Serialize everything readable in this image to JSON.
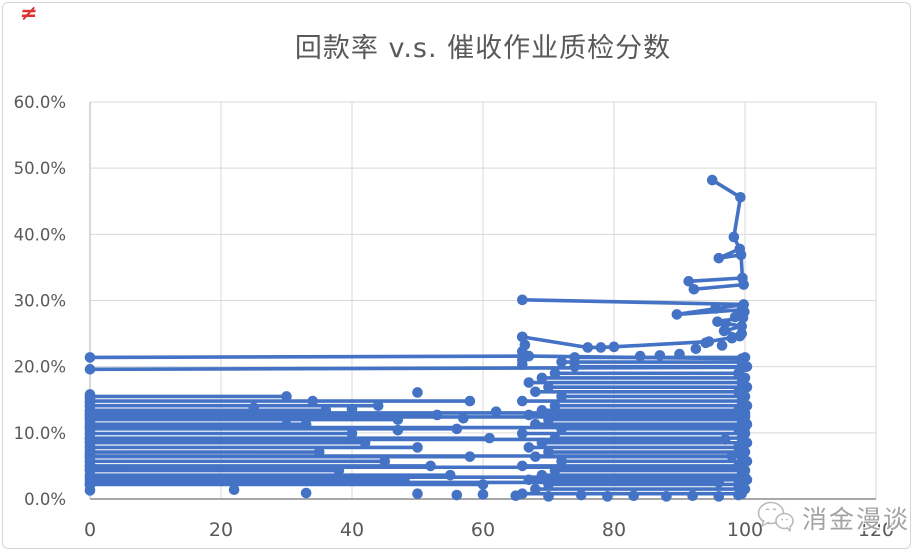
{
  "decorations": {
    "red_mark": "≠"
  },
  "watermark": {
    "text": "消金漫谈",
    "icon": "wechat-logo"
  },
  "chart_data": {
    "type": "scatter-line",
    "title": "回款率 v.s. 催收作业质检分数",
    "xlabel": "",
    "ylabel": "",
    "xlim": [
      0,
      120
    ],
    "ylim_pct": [
      0,
      60
    ],
    "grid": true,
    "legend": "none",
    "series_color": "#4472C4",
    "grid_color": "#d9d9d9",
    "axis_color": "#8c8c8c",
    "tick_text_color": "#595959",
    "x_ticks": [
      {
        "v": 0,
        "label": "0"
      },
      {
        "v": 20,
        "label": "20"
      },
      {
        "v": 40,
        "label": "40"
      },
      {
        "v": 60,
        "label": "60"
      },
      {
        "v": 80,
        "label": "80"
      },
      {
        "v": 100,
        "label": "100"
      },
      {
        "v": 120,
        "label": "120"
      }
    ],
    "y_ticks": [
      {
        "v": 0,
        "label": "0.0%"
      },
      {
        "v": 10,
        "label": "10.0%"
      },
      {
        "v": 20,
        "label": "20.0%"
      },
      {
        "v": 30,
        "label": "30.0%"
      },
      {
        "v": 40,
        "label": "40.0%"
      },
      {
        "v": 50,
        "label": "50.0%"
      },
      {
        "v": 60,
        "label": "60.0%"
      }
    ],
    "series": [
      {
        "pts": [
          [
            0,
            2.2
          ],
          [
            60,
            2.2
          ]
        ]
      },
      {
        "pts": [
          [
            0,
            2.9
          ],
          [
            48,
            2.9
          ]
        ]
      },
      {
        "pts": [
          [
            0,
            3.6
          ],
          [
            55,
            3.6
          ]
        ]
      },
      {
        "pts": [
          [
            0,
            4.3
          ],
          [
            38,
            4.3
          ]
        ]
      },
      {
        "pts": [
          [
            0,
            5.0
          ],
          [
            52,
            5.0
          ]
        ]
      },
      {
        "pts": [
          [
            0,
            5.7
          ],
          [
            45,
            5.7
          ]
        ]
      },
      {
        "pts": [
          [
            0,
            6.4
          ],
          [
            58,
            6.4
          ]
        ]
      },
      {
        "pts": [
          [
            0,
            7.1
          ],
          [
            35,
            7.1
          ]
        ]
      },
      {
        "pts": [
          [
            0,
            7.8
          ],
          [
            50,
            7.8
          ]
        ]
      },
      {
        "pts": [
          [
            0,
            8.5
          ],
          [
            42,
            8.5
          ]
        ]
      },
      {
        "pts": [
          [
            0,
            9.2
          ],
          [
            61,
            9.2
          ]
        ]
      },
      {
        "pts": [
          [
            0,
            9.9
          ],
          [
            40,
            9.9
          ]
        ]
      },
      {
        "pts": [
          [
            0,
            10.6
          ],
          [
            56,
            10.6
          ]
        ]
      },
      {
        "pts": [
          [
            0,
            11.3
          ],
          [
            33,
            11.3
          ]
        ]
      },
      {
        "pts": [
          [
            0,
            12.0
          ],
          [
            47,
            12.0
          ]
        ]
      },
      {
        "pts": [
          [
            0,
            12.7
          ],
          [
            53,
            12.7
          ]
        ]
      },
      {
        "pts": [
          [
            0,
            13.4
          ],
          [
            36,
            13.4
          ]
        ]
      },
      {
        "pts": [
          [
            0,
            14.1
          ],
          [
            44,
            14.1
          ]
        ]
      },
      {
        "pts": [
          [
            0,
            14.8
          ],
          [
            58,
            14.8
          ]
        ]
      },
      {
        "pts": [
          [
            0,
            15.5
          ],
          [
            30,
            15.5
          ]
        ]
      },
      {
        "pts": [
          [
            0,
            2.5
          ],
          [
            96,
            2.5
          ]
        ]
      },
      {
        "pts": [
          [
            0,
            3.3
          ],
          [
            100,
            3.3
          ]
        ]
      },
      {
        "pts": [
          [
            0,
            4.8
          ],
          [
            99,
            4.8
          ]
        ]
      },
      {
        "pts": [
          [
            0,
            6.5
          ],
          [
            98,
            6.5
          ]
        ]
      },
      {
        "pts": [
          [
            0,
            9.0
          ],
          [
            97,
            9.0
          ]
        ]
      },
      {
        "pts": [
          [
            0,
            10.8
          ],
          [
            100,
            10.8
          ]
        ]
      },
      {
        "pts": [
          [
            0,
            12.4
          ],
          [
            100,
            12.4
          ]
        ]
      },
      {
        "pts": [
          [
            0,
            13.0
          ],
          [
            100,
            13.0
          ]
        ]
      },
      {
        "pts": [
          [
            66,
            0.8
          ],
          [
            99.5,
            0.8
          ]
        ]
      },
      {
        "pts": [
          [
            68,
            1.5
          ],
          [
            100,
            1.5
          ]
        ]
      },
      {
        "pts": [
          [
            70,
            2.2
          ],
          [
            99,
            2.2
          ]
        ]
      },
      {
        "pts": [
          [
            67,
            2.9
          ],
          [
            100.3,
            2.9
          ]
        ]
      },
      {
        "pts": [
          [
            69,
            3.6
          ],
          [
            99.5,
            3.6
          ]
        ]
      },
      {
        "pts": [
          [
            71,
            4.3
          ],
          [
            100,
            4.3
          ]
        ]
      },
      {
        "pts": [
          [
            66,
            5.0
          ],
          [
            99,
            5.0
          ]
        ]
      },
      {
        "pts": [
          [
            72,
            5.7
          ],
          [
            100.3,
            5.7
          ]
        ]
      },
      {
        "pts": [
          [
            68,
            6.4
          ],
          [
            99.5,
            6.4
          ]
        ]
      },
      {
        "pts": [
          [
            70,
            7.1
          ],
          [
            100,
            7.1
          ]
        ]
      },
      {
        "pts": [
          [
            67,
            7.8
          ],
          [
            99,
            7.8
          ]
        ]
      },
      {
        "pts": [
          [
            69,
            8.5
          ],
          [
            100.3,
            8.5
          ]
        ]
      },
      {
        "pts": [
          [
            71,
            9.2
          ],
          [
            99.5,
            9.2
          ]
        ]
      },
      {
        "pts": [
          [
            66,
            9.9
          ],
          [
            100,
            9.9
          ]
        ]
      },
      {
        "pts": [
          [
            72,
            10.6
          ],
          [
            99,
            10.6
          ]
        ]
      },
      {
        "pts": [
          [
            68,
            11.3
          ],
          [
            100.3,
            11.3
          ]
        ]
      },
      {
        "pts": [
          [
            70,
            12.0
          ],
          [
            99.5,
            12.0
          ]
        ]
      },
      {
        "pts": [
          [
            67,
            12.7
          ],
          [
            100,
            12.7
          ]
        ]
      },
      {
        "pts": [
          [
            69,
            13.4
          ],
          [
            99,
            13.4
          ]
        ]
      },
      {
        "pts": [
          [
            71,
            14.1
          ],
          [
            100.3,
            14.1
          ]
        ]
      },
      {
        "pts": [
          [
            66,
            14.8
          ],
          [
            99.5,
            14.8
          ]
        ]
      },
      {
        "pts": [
          [
            72,
            15.5
          ],
          [
            100,
            15.5
          ]
        ]
      },
      {
        "pts": [
          [
            68,
            16.2
          ],
          [
            99,
            16.2
          ]
        ]
      },
      {
        "pts": [
          [
            70,
            16.9
          ],
          [
            100.3,
            16.9
          ]
        ]
      },
      {
        "pts": [
          [
            67,
            17.6
          ],
          [
            99.5,
            17.6
          ]
        ]
      },
      {
        "pts": [
          [
            69,
            18.3
          ],
          [
            100,
            18.3
          ]
        ]
      },
      {
        "pts": [
          [
            71,
            19.0
          ],
          [
            99,
            19.0
          ]
        ]
      },
      {
        "pts": [
          [
            74,
            20.0
          ],
          [
            100.3,
            20.0
          ]
        ]
      },
      {
        "pts": [
          [
            72,
            20.7
          ],
          [
            99.5,
            20.7
          ]
        ]
      },
      {
        "pts": [
          [
            74,
            21.4
          ],
          [
            100,
            21.4
          ]
        ]
      },
      {
        "pts": [
          [
            0,
            21.4
          ],
          [
            67,
            21.6
          ],
          [
            99.5,
            21.2
          ]
        ]
      },
      {
        "pts": [
          [
            0,
            19.6
          ],
          [
            99.7,
            19.9
          ]
        ]
      },
      {
        "pts": [
          [
            66,
            30.1
          ],
          [
            99.8,
            29.4
          ],
          [
            89.6,
            27.9
          ],
          [
            99.5,
            28.6
          ]
        ]
      },
      {
        "pts": [
          [
            66,
            24.5
          ],
          [
            76,
            22.9
          ],
          [
            78,
            22.9
          ],
          [
            80,
            23.0
          ],
          [
            94.5,
            23.8
          ],
          [
            99.2,
            24.6
          ],
          [
            96.8,
            25.4
          ],
          [
            99.5,
            26.1
          ],
          [
            95.8,
            26.8
          ],
          [
            99.7,
            27.4
          ]
        ]
      },
      {
        "pts": [
          [
            66,
            20.3
          ],
          [
            66,
            21.0
          ],
          [
            66,
            22.3
          ],
          [
            66.4,
            23.3
          ],
          [
            66,
            24.5
          ]
        ]
      },
      {
        "pts": [
          [
            0,
            1.3
          ],
          [
            0,
            2.1
          ],
          [
            0,
            4.4
          ],
          [
            0,
            5.0
          ],
          [
            0,
            5.6
          ],
          [
            0,
            6.2
          ],
          [
            0,
            6.8
          ],
          [
            0,
            7.4
          ],
          [
            0,
            8.0
          ],
          [
            0,
            8.6
          ],
          [
            0,
            9.2
          ],
          [
            0,
            9.8
          ],
          [
            0,
            10.4
          ],
          [
            0,
            11.0
          ],
          [
            0,
            11.6
          ],
          [
            0,
            12.2
          ],
          [
            0,
            12.8
          ],
          [
            0,
            13.4
          ],
          [
            0,
            14.0
          ],
          [
            0,
            14.6
          ],
          [
            0,
            15.2
          ],
          [
            0,
            15.8
          ]
        ]
      },
      {
        "pts": [
          [
            99.6,
            33.4
          ],
          [
            91.4,
            32.9
          ],
          [
            92.2,
            31.7
          ],
          [
            99.8,
            32.4
          ]
        ]
      },
      {
        "pts": [
          [
            95,
            48.2
          ],
          [
            99.3,
            45.6
          ],
          [
            98.3,
            39.6
          ],
          [
            99.2,
            37.8
          ],
          [
            96,
            36.4
          ],
          [
            99.4,
            36.9
          ],
          [
            99.6,
            33.4
          ]
        ]
      }
    ],
    "dots": [
      [
        22,
        1.4
      ],
      [
        33,
        0.9
      ],
      [
        50,
        0.8
      ],
      [
        56,
        0.6
      ],
      [
        60,
        0.7
      ],
      [
        65,
        0.5
      ],
      [
        70,
        0.4
      ],
      [
        75,
        0.6
      ],
      [
        79,
        0.4
      ],
      [
        83,
        0.5
      ],
      [
        88,
        0.4
      ],
      [
        92,
        0.5
      ],
      [
        96,
        0.4
      ],
      [
        99,
        0.6
      ],
      [
        34,
        14.8
      ],
      [
        50,
        16.1
      ],
      [
        25,
        13.8
      ],
      [
        40,
        13.6
      ],
      [
        47,
        10.4
      ],
      [
        57,
        12.2
      ],
      [
        62,
        13.2
      ],
      [
        30,
        11.2
      ],
      [
        97,
        26.5
      ],
      [
        98.5,
        27.5
      ],
      [
        99.5,
        25.0
      ],
      [
        98,
        24.3
      ],
      [
        96.5,
        23.2
      ],
      [
        94,
        23.6
      ],
      [
        92.5,
        22.7
      ],
      [
        90,
        21.9
      ],
      [
        87,
        21.7
      ],
      [
        84,
        21.6
      ],
      [
        99.9,
        28.3
      ],
      [
        95.5,
        28.8
      ]
    ]
  }
}
